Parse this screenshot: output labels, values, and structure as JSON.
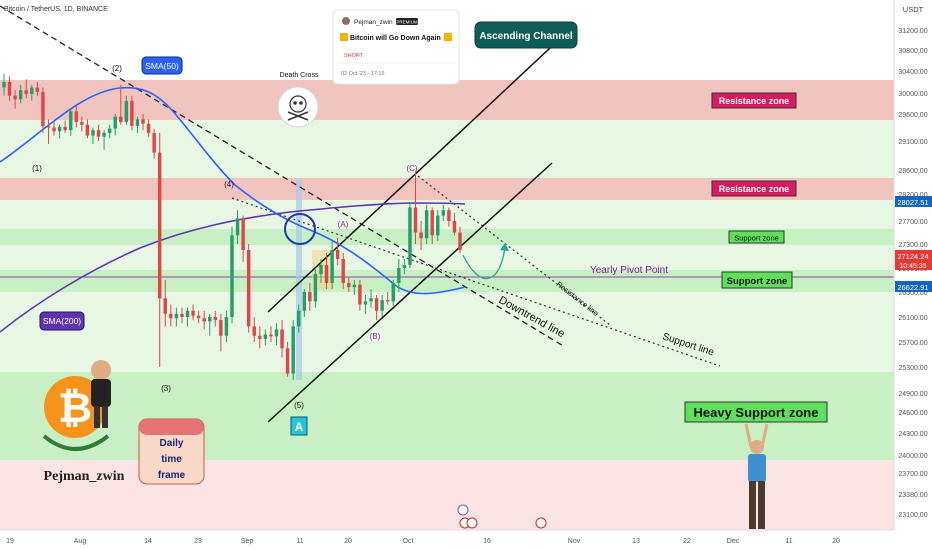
{
  "header": {
    "symbol": "Bitcoin / TetherUS, 1D, BINANCE",
    "currency": "USDT"
  },
  "idea_card": {
    "author": "Pejman_zwin",
    "badge": "PREMIUM",
    "title": "Bitcoin will Go Down Again",
    "direction": "SHORT",
    "timestamp": "02 Oct '23 - 17:16"
  },
  "price_axis": {
    "ticks": [
      "31200.00",
      "30800.00",
      "30400.00",
      "30000.00",
      "29600.00",
      "29100.00",
      "28600.00",
      "28200.00",
      "27700.00",
      "27300.00",
      "26900.00",
      "26500.00",
      "26100.00",
      "25700.00",
      "25300.00",
      "24900.00",
      "24600.00",
      "24300.00",
      "24000.00",
      "23700.00",
      "23380.00",
      "23100.00"
    ],
    "price_tags": {
      "upper": "28027.51",
      "last": "27124.24",
      "countdown": "10:45:35",
      "lower": "26622.91"
    }
  },
  "time_axis": {
    "ticks": [
      "19",
      "Aug",
      "14",
      "23",
      "Sep",
      "11",
      "20",
      "Oct",
      "16",
      "Nov",
      "13",
      "22",
      "Dec",
      "11",
      "20"
    ]
  },
  "annotations": {
    "ascending_channel": "Ascending Channel",
    "resistance_zone_1": "Resistance zone",
    "resistance_zone_2": "Resistance zone",
    "support_zone_1": "Support zone",
    "support_zone_2": "Support zone",
    "heavy_support": "Heavy Support zone",
    "yearly_pivot": "Yearly Pivot Point",
    "sma50": "SMA(50)",
    "sma200": "SMA(200)",
    "death_cross": "Death Cross",
    "downtrend_line": "Downtrend line",
    "resistance_line": "Resistance line",
    "support_line": "Support line",
    "wave_labels": [
      "(1)",
      "(2)",
      "(3)",
      "(4)",
      "(5)",
      "(A)",
      "(B)",
      "(C)"
    ],
    "pattern_letter": "A",
    "branding": "Pejman_zwin",
    "timeframe": [
      "Daily",
      "time",
      "frame"
    ]
  },
  "colors": {
    "resistance_fill": "#f2c4c0",
    "support_fill": "#c8f0c4",
    "light_green_band": "#e8f6e4",
    "light_red_band": "#fbe4e4",
    "bull": "#22a06b",
    "bear": "#e04646",
    "sma50": "#2962ff",
    "sma200": "#5e35b1",
    "channel_label_bg": "#0e5e57"
  },
  "chart_data": {
    "type": "candlestick",
    "title": "Bitcoin / TetherUS, 1D, BINANCE",
    "y_unit": "USDT",
    "ylim": [
      22800,
      31600
    ],
    "zones": [
      {
        "name": "Resistance zone",
        "from": 29600,
        "to": 30300
      },
      {
        "name": "Resistance zone",
        "from": 28050,
        "to": 28450
      },
      {
        "name": "Support zone",
        "from": 27250,
        "to": 27500
      },
      {
        "name": "Support zone",
        "from": 26600,
        "to": 26850
      },
      {
        "name": "Heavy Support zone",
        "from": 23950,
        "to": 25300
      }
    ],
    "yearly_pivot": 26900,
    "candles": [
      {
        "o": 30100,
        "h": 30350,
        "l": 29950,
        "c": 30200
      },
      {
        "o": 30200,
        "h": 30300,
        "l": 29850,
        "c": 29950
      },
      {
        "o": 29950,
        "h": 30050,
        "l": 29700,
        "c": 29880
      },
      {
        "o": 29880,
        "h": 30150,
        "l": 29800,
        "c": 30050
      },
      {
        "o": 30050,
        "h": 30250,
        "l": 29900,
        "c": 29980
      },
      {
        "o": 29980,
        "h": 30150,
        "l": 29850,
        "c": 30100
      },
      {
        "o": 30100,
        "h": 30200,
        "l": 29950,
        "c": 30020
      },
      {
        "o": 30020,
        "h": 30100,
        "l": 29250,
        "c": 29380
      },
      {
        "o": 29380,
        "h": 29500,
        "l": 29050,
        "c": 29350
      },
      {
        "o": 29350,
        "h": 29450,
        "l": 29200,
        "c": 29280
      },
      {
        "o": 29280,
        "h": 29400,
        "l": 29150,
        "c": 29360
      },
      {
        "o": 29360,
        "h": 29480,
        "l": 29250,
        "c": 29300
      },
      {
        "o": 29300,
        "h": 29700,
        "l": 29200,
        "c": 29650
      },
      {
        "o": 29650,
        "h": 29750,
        "l": 29350,
        "c": 29450
      },
      {
        "o": 29450,
        "h": 29550,
        "l": 29280,
        "c": 29400
      },
      {
        "o": 29400,
        "h": 29500,
        "l": 29150,
        "c": 29200
      },
      {
        "o": 29200,
        "h": 29350,
        "l": 29050,
        "c": 29300
      },
      {
        "o": 29300,
        "h": 29400,
        "l": 29100,
        "c": 29180
      },
      {
        "o": 29180,
        "h": 29300,
        "l": 28950,
        "c": 29250
      },
      {
        "o": 29250,
        "h": 29400,
        "l": 29150,
        "c": 29330
      },
      {
        "o": 29330,
        "h": 29600,
        "l": 29200,
        "c": 29550
      },
      {
        "o": 29550,
        "h": 30150,
        "l": 29400,
        "c": 29450
      },
      {
        "o": 29450,
        "h": 29950,
        "l": 29400,
        "c": 29850
      },
      {
        "o": 29850,
        "h": 29950,
        "l": 29300,
        "c": 29380
      },
      {
        "o": 29380,
        "h": 29550,
        "l": 29250,
        "c": 29500
      },
      {
        "o": 29500,
        "h": 29600,
        "l": 29300,
        "c": 29420
      },
      {
        "o": 29420,
        "h": 29500,
        "l": 29180,
        "c": 29250
      },
      {
        "o": 29250,
        "h": 29320,
        "l": 28800,
        "c": 28900
      },
      {
        "o": 28900,
        "h": 29250,
        "l": 25300,
        "c": 26400
      },
      {
        "o": 26400,
        "h": 26700,
        "l": 25950,
        "c": 26150
      },
      {
        "o": 26150,
        "h": 26300,
        "l": 25950,
        "c": 26080
      },
      {
        "o": 26080,
        "h": 26250,
        "l": 25950,
        "c": 26150
      },
      {
        "o": 26150,
        "h": 26250,
        "l": 26000,
        "c": 26100
      },
      {
        "o": 26100,
        "h": 26250,
        "l": 25950,
        "c": 26200
      },
      {
        "o": 26200,
        "h": 26300,
        "l": 26050,
        "c": 26120
      },
      {
        "o": 26120,
        "h": 26200,
        "l": 26000,
        "c": 26080
      },
      {
        "o": 26080,
        "h": 26200,
        "l": 25900,
        "c": 26030
      },
      {
        "o": 26030,
        "h": 26150,
        "l": 25800,
        "c": 26100
      },
      {
        "o": 26100,
        "h": 26200,
        "l": 25950,
        "c": 26050
      },
      {
        "o": 26050,
        "h": 26150,
        "l": 25550,
        "c": 25800
      },
      {
        "o": 25800,
        "h": 26200,
        "l": 25700,
        "c": 26100
      },
      {
        "o": 26100,
        "h": 27600,
        "l": 26000,
        "c": 27450
      },
      {
        "o": 27450,
        "h": 27900,
        "l": 27300,
        "c": 27750
      },
      {
        "o": 27750,
        "h": 27800,
        "l": 27000,
        "c": 27200
      },
      {
        "o": 27200,
        "h": 27300,
        "l": 25850,
        "c": 25950
      },
      {
        "o": 25950,
        "h": 26100,
        "l": 25700,
        "c": 25800
      },
      {
        "o": 25800,
        "h": 25950,
        "l": 25600,
        "c": 25750
      },
      {
        "o": 25750,
        "h": 25900,
        "l": 25650,
        "c": 25820
      },
      {
        "o": 25820,
        "h": 25950,
        "l": 25700,
        "c": 25790
      },
      {
        "o": 25790,
        "h": 26000,
        "l": 25650,
        "c": 25900
      },
      {
        "o": 25900,
        "h": 26050,
        "l": 25450,
        "c": 25600
      },
      {
        "o": 25600,
        "h": 25700,
        "l": 25150,
        "c": 25200
      },
      {
        "o": 25200,
        "h": 26050,
        "l": 25100,
        "c": 25950
      },
      {
        "o": 25950,
        "h": 26300,
        "l": 25850,
        "c": 26200
      },
      {
        "o": 26200,
        "h": 26550,
        "l": 26100,
        "c": 26500
      },
      {
        "o": 26500,
        "h": 26650,
        "l": 26200,
        "c": 26350
      },
      {
        "o": 26350,
        "h": 26900,
        "l": 26250,
        "c": 26800
      },
      {
        "o": 26800,
        "h": 27050,
        "l": 26650,
        "c": 26950
      },
      {
        "o": 26950,
        "h": 27150,
        "l": 26550,
        "c": 26650
      },
      {
        "o": 26650,
        "h": 27350,
        "l": 26550,
        "c": 27200
      },
      {
        "o": 27200,
        "h": 27400,
        "l": 26950,
        "c": 27050
      },
      {
        "o": 27050,
        "h": 27150,
        "l": 26550,
        "c": 26650
      },
      {
        "o": 26650,
        "h": 26750,
        "l": 26500,
        "c": 26580
      },
      {
        "o": 26580,
        "h": 26700,
        "l": 26450,
        "c": 26620
      },
      {
        "o": 26620,
        "h": 26700,
        "l": 26200,
        "c": 26300
      },
      {
        "o": 26300,
        "h": 26450,
        "l": 26150,
        "c": 26350
      },
      {
        "o": 26350,
        "h": 26550,
        "l": 26250,
        "c": 26400
      },
      {
        "o": 26400,
        "h": 26450,
        "l": 26050,
        "c": 26200
      },
      {
        "o": 26200,
        "h": 26450,
        "l": 26100,
        "c": 26370
      },
      {
        "o": 26370,
        "h": 26500,
        "l": 26300,
        "c": 26350
      },
      {
        "o": 26350,
        "h": 26700,
        "l": 26280,
        "c": 26650
      },
      {
        "o": 26650,
        "h": 27050,
        "l": 26500,
        "c": 26900
      },
      {
        "o": 26900,
        "h": 27050,
        "l": 26800,
        "c": 26950
      },
      {
        "o": 26950,
        "h": 28050,
        "l": 26900,
        "c": 27950
      },
      {
        "o": 27950,
        "h": 28580,
        "l": 27300,
        "c": 27500
      },
      {
        "o": 27500,
        "h": 27700,
        "l": 27200,
        "c": 27400
      },
      {
        "o": 27400,
        "h": 28000,
        "l": 27300,
        "c": 27900
      },
      {
        "o": 27900,
        "h": 27950,
        "l": 27300,
        "c": 27450
      },
      {
        "o": 27450,
        "h": 27900,
        "l": 27350,
        "c": 27800
      },
      {
        "o": 27800,
        "h": 28000,
        "l": 27700,
        "c": 27900
      },
      {
        "o": 27900,
        "h": 27950,
        "l": 27600,
        "c": 27700
      },
      {
        "o": 27700,
        "h": 27850,
        "l": 27450,
        "c": 27500
      },
      {
        "o": 27500,
        "h": 27600,
        "l": 27150,
        "c": 27200
      }
    ]
  }
}
